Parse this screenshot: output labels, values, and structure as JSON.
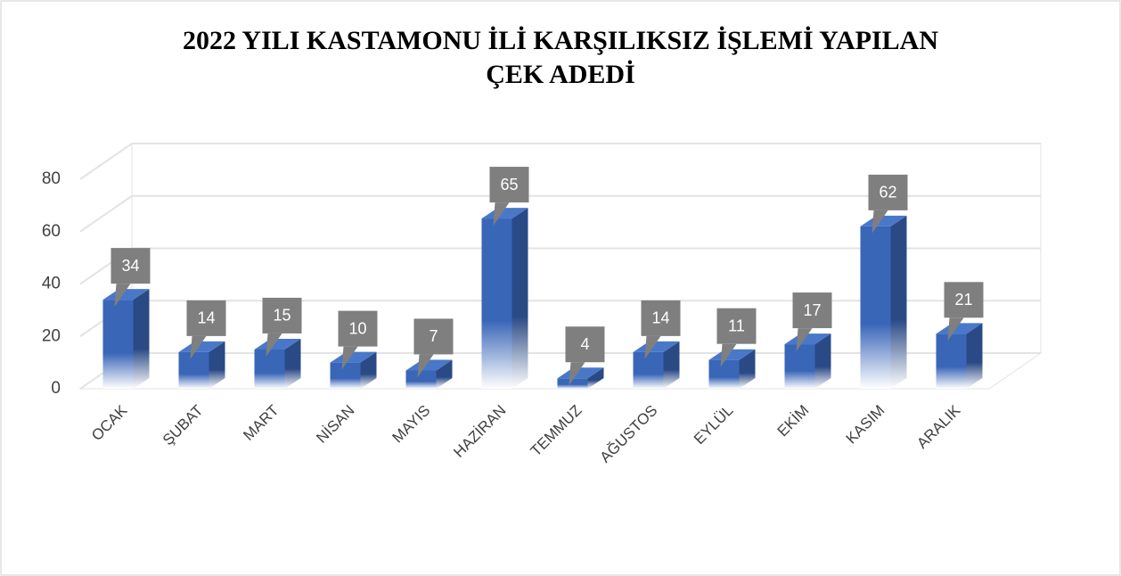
{
  "chart_data": {
    "type": "bar3d",
    "title": "2022 YILI KASTAMONU İLİ KARŞILIKSIZ İŞLEMİ YAPILAN",
    "subtitle": "ÇEK ADEDİ",
    "categories": [
      "OCAK",
      "ŞUBAT",
      "MART",
      "NİSAN",
      "MAYIS",
      "HAZİRAN",
      "TEMMUZ",
      "AĞUSTOS",
      "EYLÜL",
      "EKİM",
      "KASIM",
      "ARALIK"
    ],
    "values": [
      34,
      14,
      15,
      10,
      7,
      65,
      4,
      14,
      11,
      17,
      62,
      21
    ],
    "color": "#3a66b8",
    "ylim": [
      0,
      80
    ],
    "yticks": [
      0,
      20,
      40,
      60,
      80
    ],
    "grid": true
  }
}
